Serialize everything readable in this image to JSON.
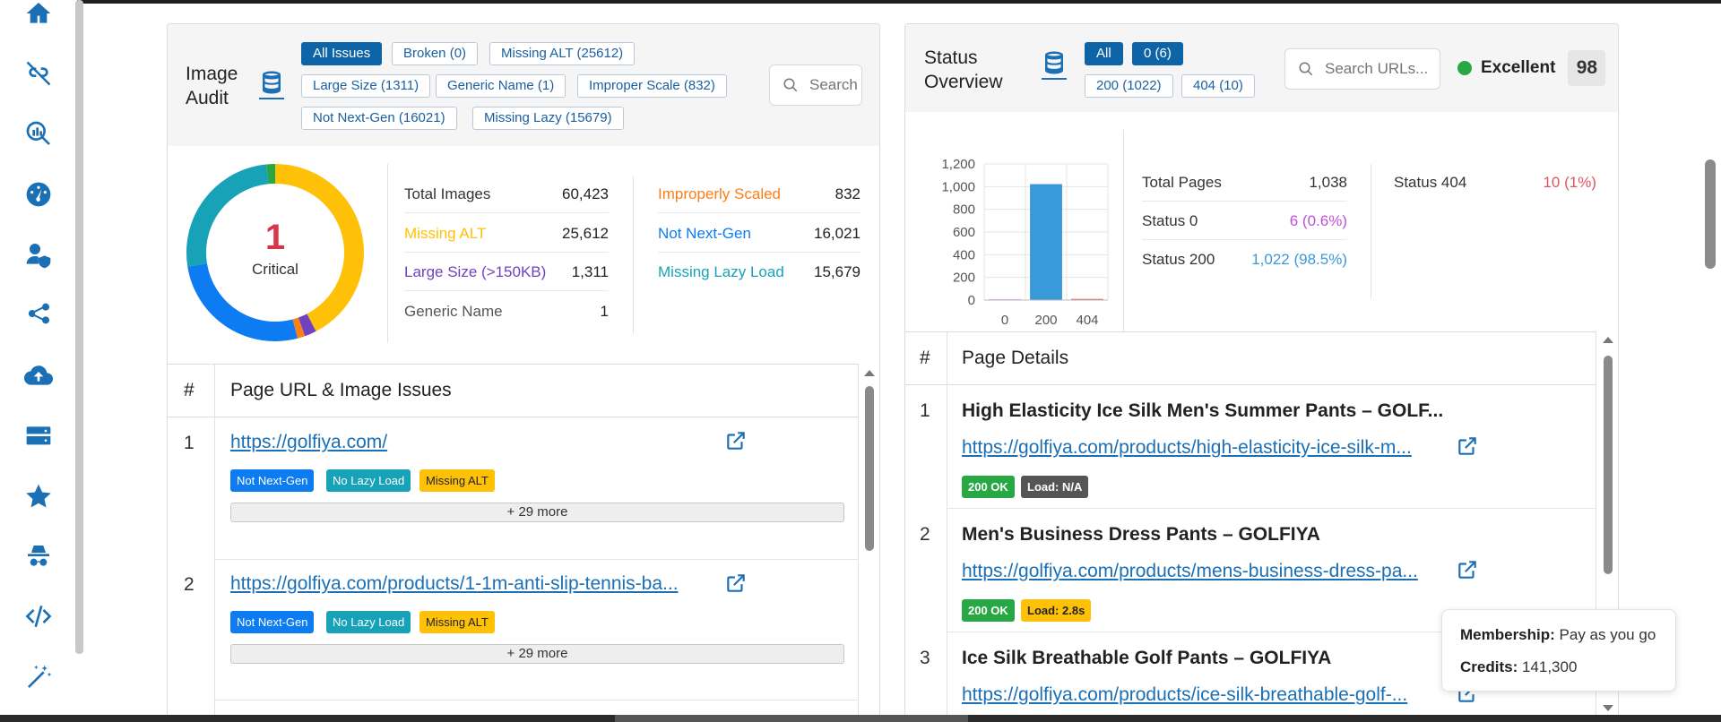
{
  "image_audit": {
    "title": "Image Audit",
    "filters": [
      "All Issues",
      "Broken (0)",
      "Missing ALT (25612)",
      "Large Size (1311)",
      "Generic Name (1)",
      "Improper Scale (832)",
      "Not Next-Gen (16021)",
      "Missing Lazy (15679)"
    ],
    "search_placeholder": "Search",
    "donut": {
      "center_value": "1",
      "center_label": "Critical",
      "segments": [
        {
          "name": "Missing ALT",
          "value": 25612,
          "color": "#ffc107"
        },
        {
          "name": "Large Size",
          "value": 1311,
          "color": "#6f42c1"
        },
        {
          "name": "Improperly Scaled",
          "value": 832,
          "color": "#fd7e14"
        },
        {
          "name": "Not Next-Gen",
          "value": 16021,
          "color": "#0d7cf2"
        },
        {
          "name": "Missing Lazy Load",
          "value": 15679,
          "color": "#17a2b8"
        },
        {
          "name": "Generic Name",
          "value": 1,
          "color": "#28a745"
        },
        {
          "name": "Other",
          "value": 967,
          "color": "#28a745"
        }
      ]
    },
    "metrics_left": [
      {
        "label": "Total Images",
        "value": "60,423",
        "color": "#333333"
      },
      {
        "label": "Missing ALT",
        "value": "25,612",
        "color": "#ffc107"
      },
      {
        "label": "Large Size (>150KB)",
        "value": "1,311",
        "color": "#6f42c1"
      },
      {
        "label": "Generic Name",
        "value": "1",
        "color": "#555555"
      }
    ],
    "metrics_right": [
      {
        "label": "Improperly Scaled",
        "value": "832",
        "color": "#fd7e14"
      },
      {
        "label": "Not Next-Gen",
        "value": "16,021",
        "color": "#0d7cf2"
      },
      {
        "label": "Missing Lazy Load",
        "value": "15,679",
        "color": "#17a2b8"
      }
    ],
    "table_headers": [
      "#",
      "Page URL & Image Issues"
    ],
    "rows": [
      {
        "num": "1",
        "url": "https://golfiya.com/",
        "tags": [
          "Not Next-Gen",
          "No Lazy Load",
          "Missing ALT"
        ],
        "more": "+ 29 more"
      },
      {
        "num": "2",
        "url": "https://golfiya.com/products/1-1m-anti-slip-tennis-ba...",
        "tags": [
          "Not Next-Gen",
          "No Lazy Load",
          "Missing ALT"
        ],
        "more": "+ 29 more"
      }
    ]
  },
  "status_overview": {
    "title": "Status Overview",
    "filters": [
      "All",
      "0 (6)",
      "200 (1022)",
      "404 (10)"
    ],
    "search_placeholder": "Search URLs...",
    "rating": "Excellent",
    "score": "98",
    "stats_left": [
      {
        "label": "Total Pages",
        "value": "1,038",
        "color": "#333333"
      },
      {
        "label": "Status 0",
        "value": "6 (0.6%)",
        "color": "#c04fd8"
      },
      {
        "label": "Status 200",
        "value": "1,022 (98.5%)",
        "color": "#3a9ad9"
      }
    ],
    "stats_right": [
      {
        "label": "Status 404",
        "value": "10 (1%)",
        "color": "#e05560"
      }
    ],
    "table_headers": [
      "#",
      "Page Details"
    ],
    "rows": [
      {
        "num": "1",
        "title": "High Elasticity Ice Silk Men's Summer Pants – GOLF...",
        "url": "https://golfiya.com/products/high-elasticity-ice-silk-m...",
        "status": "200 OK",
        "load": "Load: N/A"
      },
      {
        "num": "2",
        "title": "Men's Business Dress Pants – GOLFIYA",
        "url": "https://golfiya.com/products/mens-business-dress-pa...",
        "status": "200 OK",
        "load": "Load: 2.8s"
      },
      {
        "num": "3",
        "title": "Ice Silk Breathable Golf Pants – GOLFIYA",
        "url": "https://golfiya.com/products/ice-silk-breathable-golf-...",
        "status": "",
        "load": ""
      }
    ]
  },
  "chart_data": {
    "type": "bar",
    "categories": [
      "0",
      "200",
      "404"
    ],
    "values": [
      6,
      1022,
      10
    ],
    "ylim": [
      0,
      1200
    ],
    "yticks": [
      "0",
      "200",
      "400",
      "600",
      "800",
      "1,000",
      "1,200"
    ],
    "grid": true,
    "colors": [
      "#c04fd8",
      "#3a9ad9",
      "#e05560"
    ]
  },
  "tooltip": {
    "membership_label": "Membership:",
    "membership_value": "Pay as you go",
    "credits_label": "Credits:",
    "credits_value": "141,300"
  },
  "sidebar_icons": [
    "home-icon",
    "unlink-icon",
    "search-chart-icon",
    "speedometer-icon",
    "user-shield-icon",
    "share-icon",
    "cloud-upload-icon",
    "server-icon",
    "star-icon",
    "spy-icon",
    "code-icon",
    "magic-wand-icon"
  ]
}
